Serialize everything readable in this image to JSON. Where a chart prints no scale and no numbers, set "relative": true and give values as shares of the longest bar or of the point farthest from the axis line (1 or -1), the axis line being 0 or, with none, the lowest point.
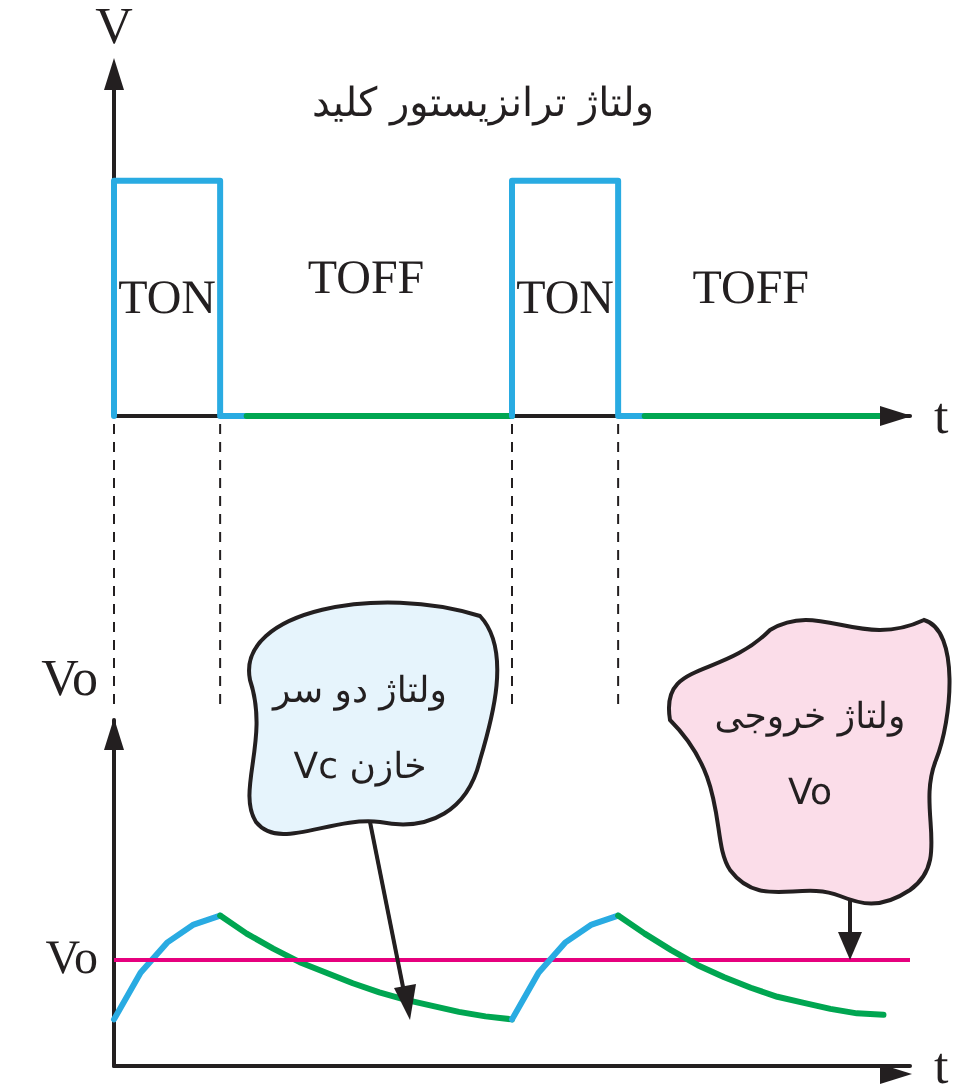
{
  "chart_data": [
    {
      "type": "step",
      "title": "ولتاژ ترانزیستور کلید",
      "xlabel": "t",
      "ylabel": "V",
      "relative": true,
      "marker": "none",
      "categories": [
        null,
        null,
        null,
        null,
        null,
        null,
        null,
        null,
        null,
        null,
        null,
        null,
        null,
        null,
        null,
        null,
        null,
        null,
        null,
        null,
        null,
        null,
        null,
        null,
        null,
        null,
        null,
        null,
        null,
        null,
        null
      ],
      "series": [
        {
          "color": "#29abe2",
          "values": [
            0,
            1,
            1,
            1,
            1,
            0,
            null,
            null,
            null,
            null,
            null,
            null,
            null,
            null,
            null,
            null,
            null,
            null,
            null,
            null,
            null,
            null,
            null,
            null,
            null,
            null,
            null,
            null,
            null,
            null,
            null
          ]
        },
        {
          "type": "line",
          "color": "#00a651",
          "values": [
            null,
            null,
            null,
            null,
            null,
            0,
            0,
            0,
            0,
            0,
            0,
            0,
            0,
            0,
            0,
            0,
            null,
            null,
            null,
            null,
            null,
            null,
            null,
            null,
            null,
            null,
            null,
            null,
            null,
            null,
            null
          ]
        },
        {
          "color": "#29abe2",
          "values": [
            null,
            null,
            null,
            null,
            null,
            null,
            null,
            null,
            null,
            null,
            null,
            null,
            null,
            null,
            null,
            0,
            1,
            1,
            1,
            1,
            0,
            null,
            null,
            null,
            null,
            null,
            null,
            null,
            null,
            null,
            null
          ]
        },
        {
          "type": "line",
          "color": "#00a651",
          "values": [
            null,
            null,
            null,
            null,
            null,
            null,
            null,
            null,
            null,
            null,
            null,
            null,
            null,
            null,
            null,
            null,
            null,
            null,
            null,
            null,
            0,
            0,
            0,
            0,
            0,
            0,
            0,
            0,
            0,
            0,
            null
          ]
        }
      ],
      "annotations": [
        "TON",
        "TOFF",
        "TON",
        "TOFF"
      ]
    },
    {
      "type": "line",
      "xlabel": "t",
      "ylabel": "Vo",
      "relative": true,
      "marker": "none",
      "categories": [
        null,
        null,
        null,
        null,
        null,
        null,
        null,
        null,
        null,
        null,
        null,
        null,
        null,
        null,
        null,
        null,
        null,
        null,
        null,
        null,
        null,
        null,
        null,
        null,
        null,
        null,
        null,
        null,
        null,
        null,
        null
      ],
      "series": [
        {
          "color": "#29abe2",
          "values": [
            0.31,
            0.62,
            0.82,
            0.94,
            1.0,
            null,
            null,
            null,
            null,
            null,
            null,
            null,
            null,
            null,
            null,
            null,
            null,
            null,
            null,
            null,
            null,
            null,
            null,
            null,
            null,
            null,
            null,
            null,
            null,
            null,
            null
          ]
        },
        {
          "color": "#00a651",
          "values": [
            null,
            null,
            null,
            null,
            1.0,
            0.88,
            0.78,
            0.69,
            0.62,
            0.55,
            0.49,
            0.44,
            0.4,
            0.36,
            0.33,
            0.31,
            null,
            null,
            null,
            null,
            null,
            null,
            null,
            null,
            null,
            null,
            null,
            null,
            null,
            null,
            null
          ]
        },
        {
          "color": "#29abe2",
          "values": [
            null,
            null,
            null,
            null,
            null,
            null,
            null,
            null,
            null,
            null,
            null,
            null,
            null,
            null,
            null,
            0.31,
            0.62,
            0.82,
            0.94,
            1.0,
            null,
            null,
            null,
            null,
            null,
            null,
            null,
            null,
            null,
            null,
            null
          ]
        },
        {
          "color": "#00a651",
          "values": [
            null,
            null,
            null,
            null,
            null,
            null,
            null,
            null,
            null,
            null,
            null,
            null,
            null,
            null,
            null,
            null,
            null,
            null,
            null,
            1.0,
            0.88,
            0.77,
            0.67,
            0.59,
            0.52,
            0.46,
            0.42,
            0.38,
            0.35,
            0.34,
            null
          ]
        }
      ],
      "ref_lines": [
        {
          "axis": "y",
          "value": 0.71,
          "label": "Vo",
          "color": "#e6007e"
        }
      ],
      "annotations": [
        "ولتاژ دو سر خازن Vc",
        "ولتاژ خروجی Vo"
      ]
    }
  ]
}
